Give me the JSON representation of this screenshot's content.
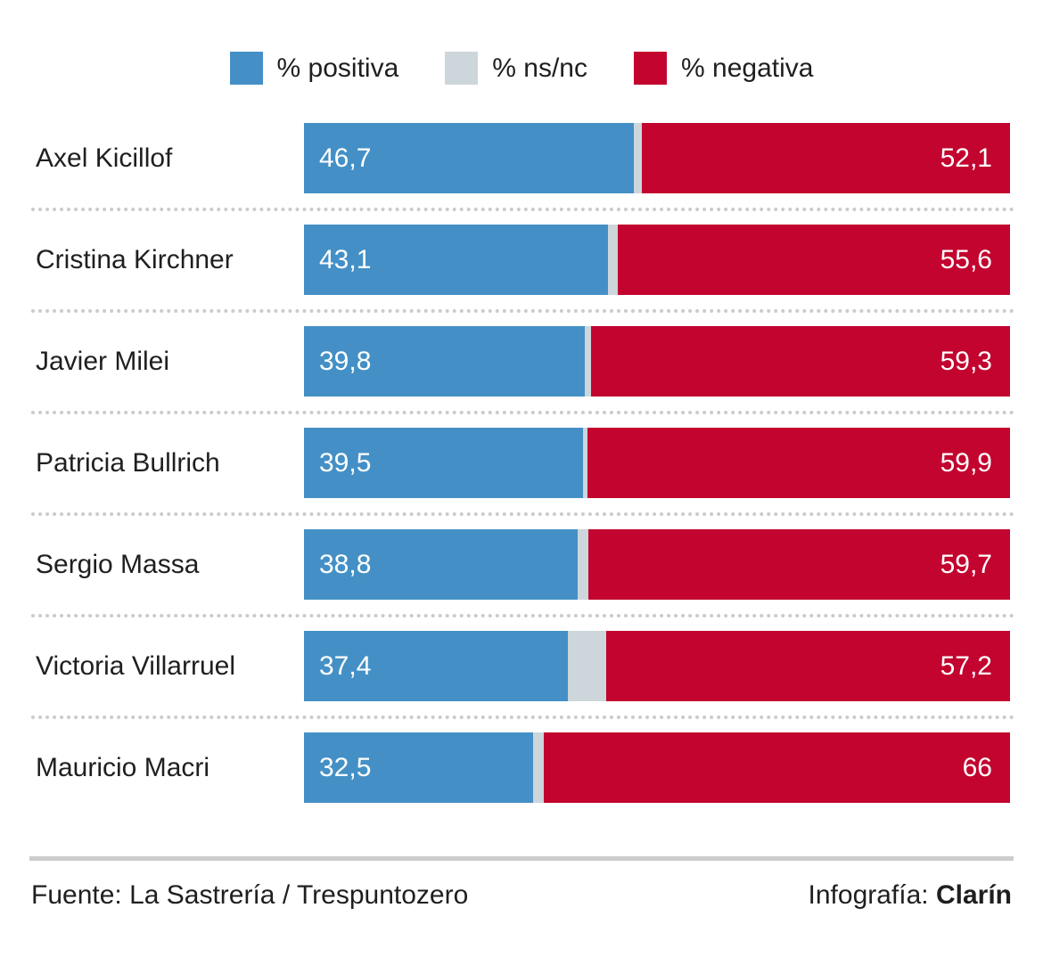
{
  "legend": {
    "items": [
      {
        "label": "% positiva",
        "color": "#4490c6"
      },
      {
        "label": "% ns/nc",
        "color": "#ccd6db"
      },
      {
        "label": "% negativa",
        "color": "#c2042f"
      }
    ]
  },
  "chart_data": {
    "type": "bar",
    "orientation": "horizontal",
    "stacked": true,
    "xlim": [
      0,
      100
    ],
    "grid": false,
    "legend_position": "top",
    "categories": [
      "Axel Kicillof",
      "Cristina Kirchner",
      "Javier Milei",
      "Patricia Bullrich",
      "Sergio Massa",
      "Victoria Villarruel",
      "Mauricio Macri"
    ],
    "series": [
      {
        "name": "% positiva",
        "color": "#4490c6",
        "values": [
          46.7,
          43.1,
          39.8,
          39.5,
          38.8,
          37.4,
          32.5
        ],
        "value_labels": [
          "46,7",
          "43,1",
          "39,8",
          "39,5",
          "38,8",
          "37,4",
          "32,5"
        ]
      },
      {
        "name": "% ns/nc",
        "color": "#ccd6db",
        "values": [
          1.2,
          1.3,
          0.9,
          0.6,
          1.5,
          5.4,
          1.5
        ],
        "value_labels": [
          "",
          "",
          "",
          "",
          "",
          "",
          ""
        ]
      },
      {
        "name": "% negativa",
        "color": "#c2042f",
        "values": [
          52.1,
          55.6,
          59.3,
          59.9,
          59.7,
          57.2,
          66
        ],
        "value_labels": [
          "52,1",
          "55,6",
          "59,3",
          "59,9",
          "59,7",
          "57,2",
          "66"
        ]
      }
    ]
  },
  "footer": {
    "source": "Fuente: La Sastrería / Trespuntozero",
    "credit_prefix": "Infografía: ",
    "credit_brand": "Clarín"
  },
  "colors": {
    "positive": "#4490c6",
    "nsnc": "#ccd6db",
    "negative": "#c2042f",
    "text": "#1f1f1f",
    "separator_dots": "#cbcbcb",
    "footer_rule": "#cccccc",
    "bar_value_text": "#ffffff"
  }
}
